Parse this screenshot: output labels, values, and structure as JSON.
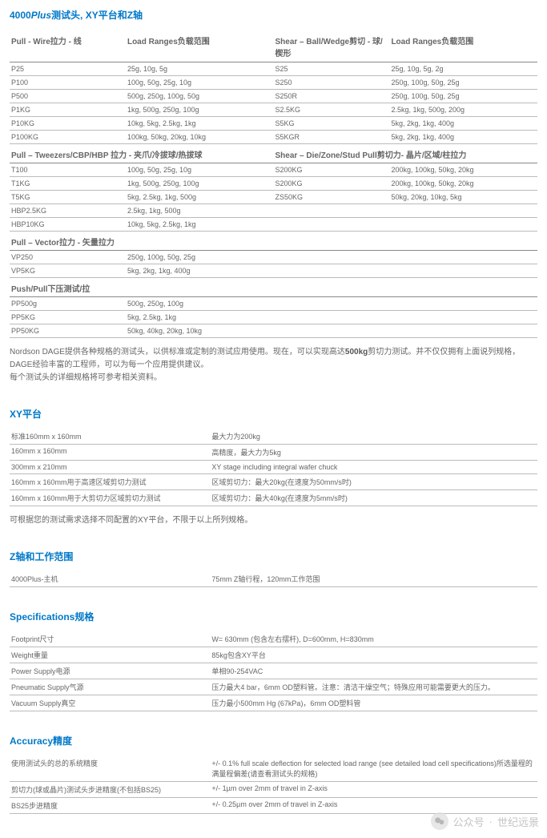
{
  "title": {
    "prefix": "4000",
    "plus": "Plus",
    "suffix": "测试头, XY平台和Z轴"
  },
  "cart_table": {
    "cols": [
      22,
      28,
      22,
      28
    ],
    "headers": [
      "Pull - Wire拉力 - 线",
      "Load Ranges负载范围",
      "Shear – Ball/Wedge剪切 - 球/楔形",
      "Load Ranges负载范围"
    ],
    "rows1": [
      [
        "P25",
        "25g, 10g, 5g",
        "S25",
        "25g, 10g, 5g, 2g"
      ],
      [
        "P100",
        "100g, 50g, 25g, 10g",
        "S250",
        "250g, 100g, 50g, 25g"
      ],
      [
        "P500",
        "500g, 250g, 100g, 50g",
        "S250R",
        "250g, 100g, 50g, 25g"
      ],
      [
        "P1KG",
        "1kg, 500g, 250g, 100g",
        "S2.5KG",
        "2.5kg, 1kg, 500g, 200g"
      ],
      [
        "P10KG",
        "10kg, 5kg, 2.5kg, 1kg",
        "S5KG",
        "5kg, 2kg, 1kg, 400g"
      ],
      [
        "P100KG",
        "100kg, 50kg, 20kg, 10kg",
        "S5KGR",
        "5kg, 2kg, 1kg, 400g"
      ]
    ],
    "sub1_left": "Pull – Tweezers/CBP/HBP 拉力 - 夹爪/冷拔球/热拔球",
    "sub1_right": "Shear – Die/Zone/Stud Pull剪切力- 晶片/区域/柱拉力",
    "rows2": [
      [
        "T100",
        "100g, 50g, 25g, 10g",
        "S200KG",
        "200kg, 100kg, 50kg, 20kg"
      ],
      [
        "T1KG",
        "1kg, 500g, 250g, 100g",
        "S200KG",
        "200kg, 100kg, 50kg, 20kg"
      ],
      [
        "T5KG",
        "5kg, 2.5kg, 1kg, 500g",
        "ZS50KG",
        "50kg, 20kg, 10kg, 5kg"
      ],
      [
        "HBP2.5KG",
        "2.5kg, 1kg, 500g",
        "",
        ""
      ],
      [
        "HBP10KG",
        "10kg, 5kg, 2.5kg, 1kg",
        "",
        ""
      ]
    ],
    "sub2": "Pull – Vector拉力 - 矢量拉力",
    "rows3": [
      [
        "VP250",
        "250g, 100g, 50g, 25g",
        "",
        ""
      ],
      [
        "VP5KG",
        "5kg, 2kg, 1kg, 400g",
        "",
        ""
      ]
    ],
    "sub3": "Push/Pull下压测试/拉",
    "rows4": [
      [
        "PP500g",
        "500g, 250g, 100g",
        "",
        ""
      ],
      [
        "PP5KG",
        "5kg, 2.5kg, 1kg",
        "",
        ""
      ],
      [
        "PP50KG",
        "50kg, 40kg, 20kg, 10kg",
        "",
        ""
      ]
    ]
  },
  "para1": {
    "t1": "Nordson DAGE提供各种规格的测试头，以供标准或定制的测试应用使用。现在，可以实现高达",
    "b1": "500kg",
    "t2": "剪切力测试。并不仅仅拥有上面说列规格，DAGE经验丰富的工程师，可以为每一个应用提供建议。",
    "t3": "每个测试头的详细规格将可参考相关资料。"
  },
  "xy": {
    "title": "XY平台",
    "rows": [
      [
        "标准160mm x 160mm",
        "最大力为200kg"
      ],
      [
        "160mm x 160mm",
        "高精度，最大力为5kg"
      ],
      [
        "300mm x 210mm",
        "XY stage including integral wafer chuck"
      ],
      [
        "160mm x 160mm用于高速区域剪切力测试",
        "区域剪切力：最大20kg(在速度为50mm/s时)"
      ],
      [
        "160mm x 160mm用于大剪切力区域剪切力测试",
        "区域剪切力：最大40kg(在速度为5mm/s时)"
      ]
    ],
    "note": "可根据您的测试需求选择不同配置的XY平台，不限于以上所列规格。"
  },
  "z": {
    "title": "Z轴和工作范围",
    "rows": [
      [
        "4000Plus-主机",
        "75mm Z轴行程，120mm工作范围"
      ]
    ]
  },
  "specs": {
    "title": "Specifications规格",
    "rows": [
      [
        "Footprint尺寸",
        "W= 630mm (包含左右摆杆), D=600mm, H=830mm"
      ],
      [
        "Weight重量",
        "85kg包含XY平台"
      ],
      [
        "Power Supply电源",
        "单相90-254VAC"
      ],
      [
        "Pneumatic Supply气源",
        "压力最大4 bar，6mm OD塑料管。注意：清洁干燥空气；特殊应用可能需要更大的压力。"
      ],
      [
        "Vacuum Supply真空",
        "压力最小500mm Hg (67kPa)，6mm OD塑料管"
      ]
    ]
  },
  "accuracy": {
    "title": "Accuracy精度",
    "rows": [
      [
        "使用测试头的总的系统精度",
        "+/- 0.1% full scale deflection for selected load range (see detailed load cell specifications)所选量程的满量程偏差(请查看测试头的规格)"
      ],
      [
        "剪切力(球或晶片)测试头步进精度(不包括BS25)",
        "+/- 1µm over 2mm of travel in Z-axis"
      ],
      [
        "BS25步进精度",
        "+/- 0.25µm over 2mm of travel in Z-axis"
      ]
    ]
  },
  "watermark": {
    "label": "公众号",
    "name": "世纪远景"
  }
}
